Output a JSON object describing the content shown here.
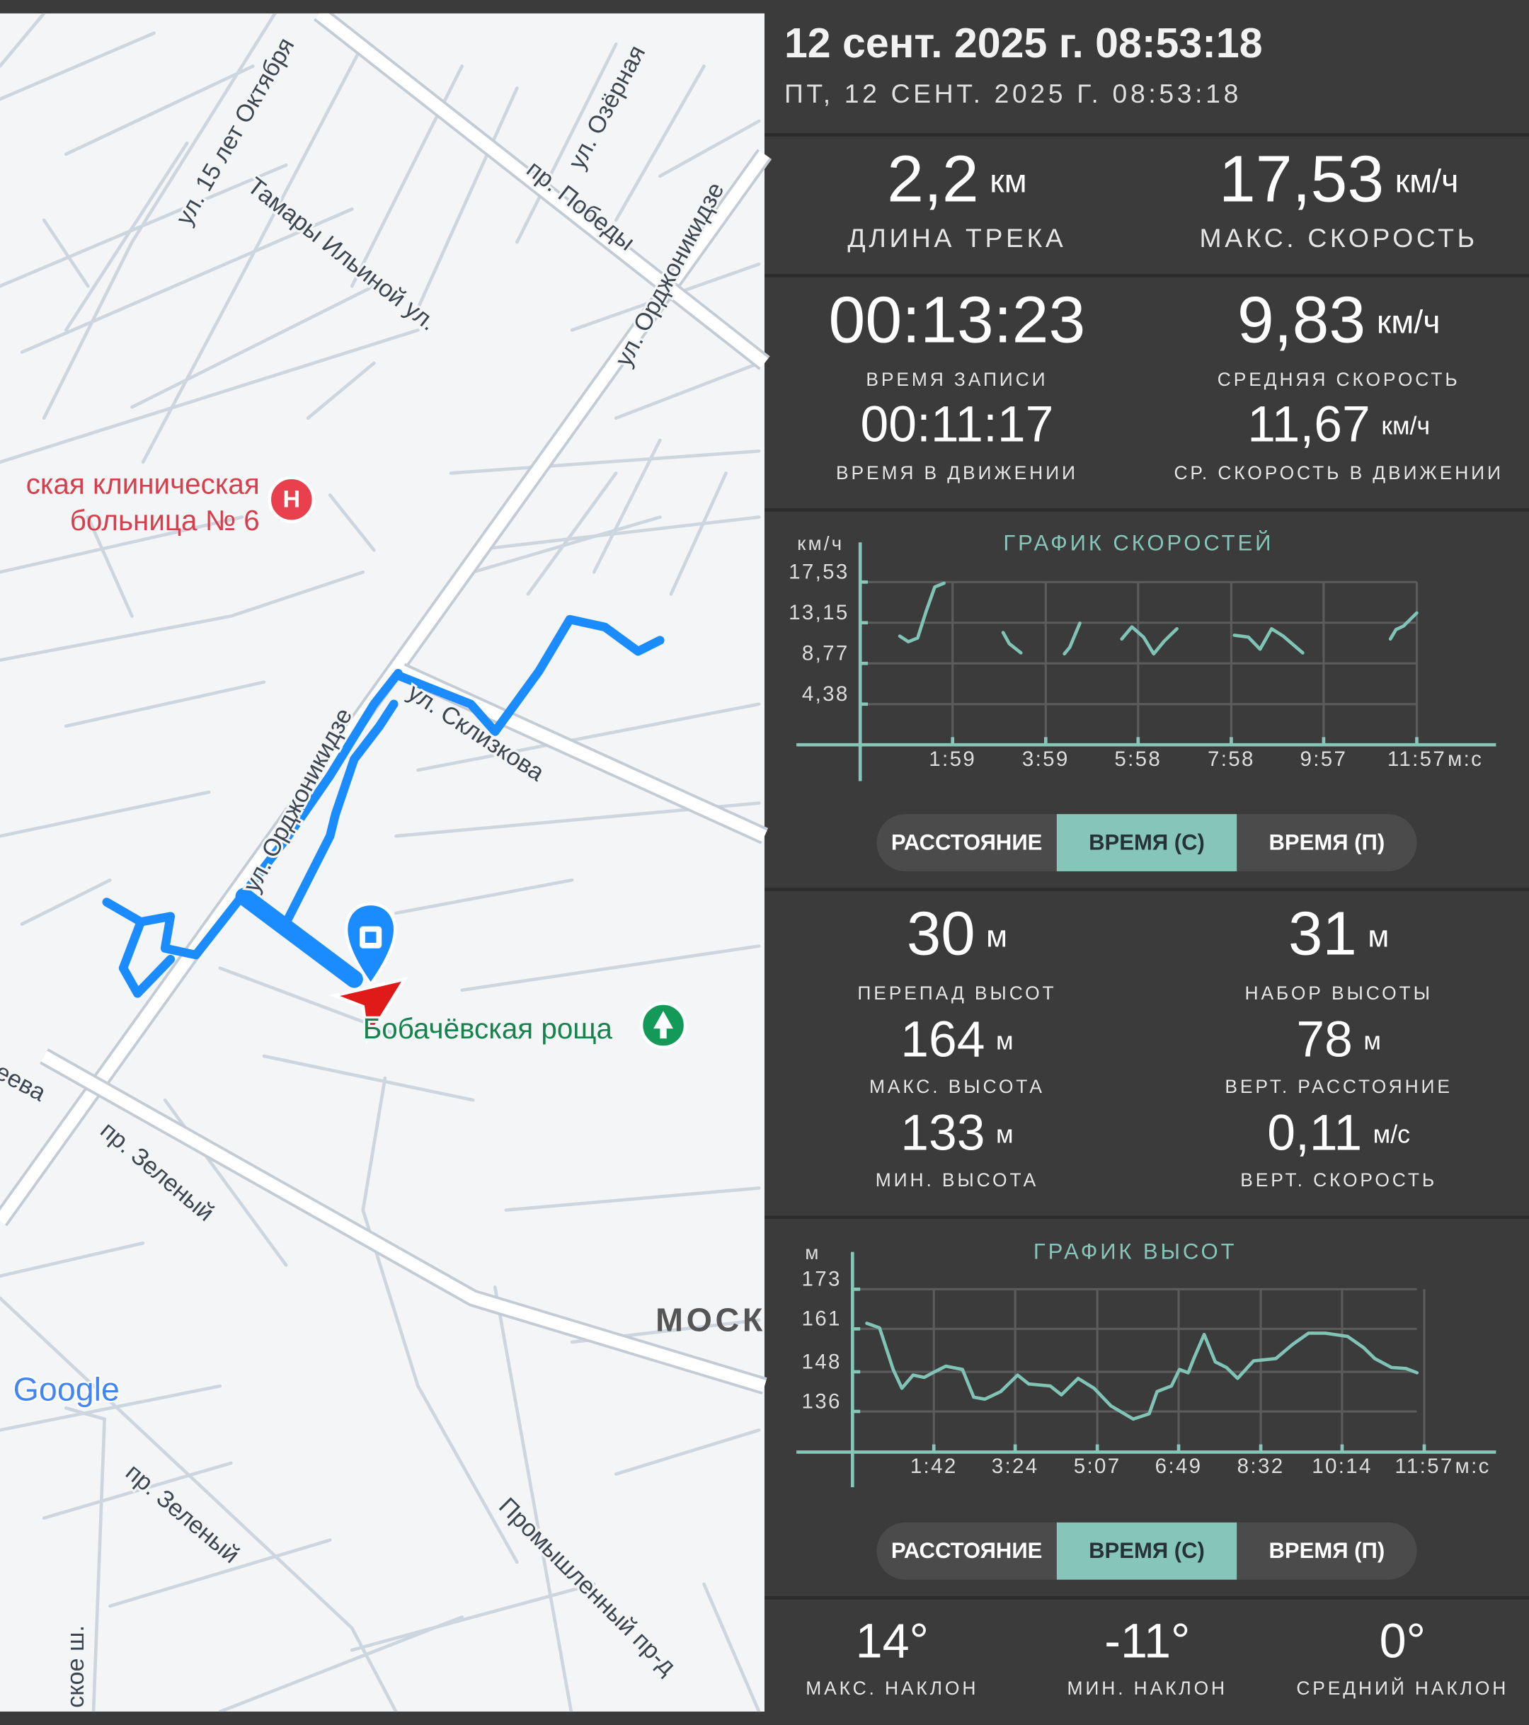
{
  "map": {
    "streets": [
      "ул. 15 лет Октября",
      "Тамары Ильиной ул.",
      "ул. Озёрная",
      "пр. Победы",
      "ул. Орджоникидзе",
      "ул. Орджоникидзе",
      "ул. Склизкова",
      "пр. Зеленый",
      "пр. Зеленый",
      "Промышленный пр-д",
      "ское ш.",
      "еева"
    ],
    "hospital": [
      "ская клиническая",
      "больница № 6"
    ],
    "park": "Бобачёвская роща",
    "district": "МОСК",
    "logo": "Google"
  },
  "header": {
    "title": "12 сент. 2025 г. 08:53:18",
    "subtitle": "ПТ, 12 СЕНТ. 2025 Г. 08:53:18"
  },
  "track_stats": [
    {
      "value": "2,2",
      "unit": "км",
      "label": "ДЛИНА ТРЕКА"
    },
    {
      "value": "17,53",
      "unit": "км/ч",
      "label": "МАКС. СКОРОСТЬ"
    },
    {
      "value": "00:13:23",
      "label": "ВРЕМЯ ЗАПИСИ"
    },
    {
      "value": "9,83",
      "unit": "км/ч",
      "label": "СРЕДНЯЯ СКОРОСТЬ"
    },
    {
      "value": "00:11:17",
      "label": "ВРЕМЯ В ДВИЖЕНИИ"
    },
    {
      "value": "11,67",
      "unit": "км/ч",
      "label": "СР. СКОРОСТЬ В ДВИЖЕНИИ"
    }
  ],
  "chart_data": [
    {
      "type": "line",
      "title": "ГРАФИК СКОРОСТЕЙ",
      "y_unit": "км/ч",
      "x_unit": "м:с",
      "color": "#7fc4b5",
      "grid": true,
      "xlim": [
        0,
        819
      ],
      "ylim": [
        0,
        21.8
      ],
      "xticks": [
        {
          "value": 119,
          "label": "1:59"
        },
        {
          "value": 239,
          "label": "3:59"
        },
        {
          "value": 358,
          "label": "5:58"
        },
        {
          "value": 478,
          "label": "7:58"
        },
        {
          "value": 597,
          "label": "9:57"
        },
        {
          "value": 717,
          "label": "11:57"
        }
      ],
      "yticks": [
        {
          "value": 17.53,
          "label": "17,53"
        },
        {
          "value": 13.15,
          "label": "13,15"
        },
        {
          "value": 8.77,
          "label": "8,77"
        },
        {
          "value": 4.38,
          "label": "4,38"
        }
      ],
      "x": [
        51,
        62,
        74,
        85,
        96,
        108,
        150,
        184,
        192,
        207,
        240,
        263,
        270,
        283,
        310,
        337,
        350,
        365,
        378,
        392,
        408,
        450,
        482,
        500,
        515,
        530,
        545,
        570,
        630,
        683,
        690,
        700,
        717
      ],
      "values": [
        11.7,
        11.1,
        11.5,
        14.4,
        17.0,
        17.4,
        null,
        12.1,
        10.9,
        9.9,
        null,
        9.8,
        10.5,
        13.1,
        null,
        11.4,
        12.7,
        11.6,
        9.8,
        11.2,
        12.5,
        null,
        11.8,
        11.6,
        10.3,
        12.5,
        11.7,
        9.9,
        null,
        11.4,
        12.4,
        12.8,
        14.2
      ]
    },
    {
      "type": "line",
      "title": "ГРАФИК ВЫСОТ",
      "y_unit": "м",
      "x_unit": "м:с",
      "color": "#7fc4b5",
      "grid": true,
      "xlim": [
        0,
        807
      ],
      "ylim": [
        123.7,
        184.3
      ],
      "xticks": [
        {
          "value": 102,
          "label": "1:42"
        },
        {
          "value": 204,
          "label": "3:24"
        },
        {
          "value": 307,
          "label": "5:07"
        },
        {
          "value": 409,
          "label": "6:49"
        },
        {
          "value": 512,
          "label": "8:32"
        },
        {
          "value": 614,
          "label": "10:14"
        },
        {
          "value": 717,
          "label": "11:57"
        }
      ],
      "yticks": [
        173,
        161,
        148,
        136
      ],
      "x": [
        18,
        34,
        51,
        62,
        76,
        90,
        103,
        117,
        138,
        152,
        166,
        186,
        207,
        221,
        248,
        262,
        283,
        303,
        324,
        352,
        372,
        382,
        400,
        410,
        421,
        428,
        441,
        455,
        469,
        483,
        503,
        531,
        552,
        572,
        593,
        621,
        641,
        655,
        676,
        694,
        708
      ],
      "values": [
        162.7,
        161.3,
        148.7,
        143.0,
        147.0,
        146.3,
        148.0,
        149.7,
        148.7,
        140.3,
        139.7,
        142.0,
        147.0,
        144.3,
        143.7,
        141.0,
        146.0,
        143.0,
        137.7,
        133.7,
        135.3,
        142.0,
        143.7,
        148.7,
        147.7,
        152.0,
        159.3,
        151.0,
        149.3,
        146.0,
        151.3,
        152.0,
        156.3,
        159.7,
        159.7,
        158.7,
        155.3,
        152.0,
        149.3,
        149.0,
        147.7
      ]
    }
  ],
  "speed_toggle": {
    "options": [
      "РАССТОЯНИЕ",
      "ВРЕМЯ (С)",
      "ВРЕМЯ (П)"
    ],
    "selected": 1
  },
  "altitude_stats": [
    {
      "value": "30",
      "unit": "м",
      "label": "ПЕРЕПАД ВЫСОТ"
    },
    {
      "value": "31",
      "unit": "м",
      "label": "НАБОР ВЫСОТЫ"
    },
    {
      "value": "164",
      "unit": "м",
      "label": "МАКС. ВЫСОТА"
    },
    {
      "value": "78",
      "unit": "м",
      "label": "ВЕРТ. РАССТОЯНИЕ"
    },
    {
      "value": "133",
      "unit": "м",
      "label": "МИН. ВЫСОТА"
    },
    {
      "value": "0,11",
      "unit": "м/с",
      "label": "ВЕРТ. СКОРОСТЬ"
    }
  ],
  "altitude_toggle": {
    "options": [
      "РАССТОЯНИЕ",
      "ВРЕМЯ (С)",
      "ВРЕМЯ (П)"
    ],
    "selected": 1
  },
  "slope_stats": [
    {
      "value": "14°",
      "label": "МАКС. НАКЛОН"
    },
    {
      "value": "-11°",
      "label": "МИН. НАКЛОН"
    },
    {
      "value": "0°",
      "label": "СРЕДНИЙ НАКЛОН"
    }
  ]
}
